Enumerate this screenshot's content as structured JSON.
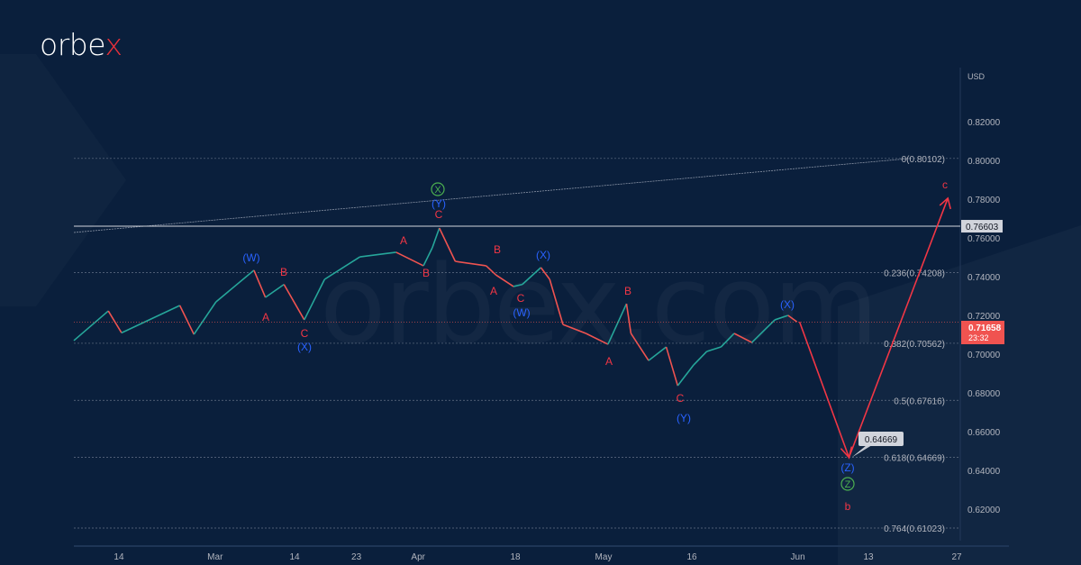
{
  "logo": {
    "text_main": "orbe",
    "text_accent": "x"
  },
  "watermark": "orbex.com",
  "colors": {
    "background": "#0a1f3c",
    "up": "#26a69a",
    "down": "#ef5350",
    "wave_red": "#f23645",
    "wave_blue": "#2962ff",
    "wave_green": "#4caf50",
    "fib": "#8a94a6",
    "grid_text": "#b2b5be"
  },
  "chart_data": {
    "type": "line",
    "title": "",
    "currency_label": "USD",
    "ylim": [
      0.6,
      0.83
    ],
    "y_ticks": [
      0.82,
      0.8,
      0.78,
      0.76,
      0.74,
      0.72,
      0.7,
      0.68,
      0.66,
      0.64,
      0.62
    ],
    "y_tick_labels": [
      "0.82000",
      "0.80000",
      "0.78000",
      "0.76000",
      "0.74000",
      "0.72000",
      "0.70000",
      "0.68000",
      "0.66000",
      "0.64000",
      "0.62000"
    ],
    "x_unit": "trading-day index",
    "xlim": [
      0,
      101
    ],
    "x_ticks": [
      5.1,
      16,
      25,
      32,
      39,
      50,
      60,
      70,
      82,
      90,
      100
    ],
    "x_tick_labels": [
      "14",
      "Mar",
      "14",
      "23",
      "Apr",
      "18",
      "May",
      "16",
      "Jun",
      "13",
      "27"
    ],
    "price_series": {
      "x": [
        0,
        3.9,
        5.4,
        12,
        13.6,
        16.1,
        20.4,
        21.7,
        23.8,
        26.1,
        28.4,
        32.4,
        36.5,
        39.6,
        40.6,
        41.4,
        43.2,
        46.7,
        47.8,
        49.8,
        50.8,
        52.9,
        53.9,
        55.4,
        58,
        60.5,
        62.6,
        63.1,
        65.1,
        67.1,
        68.4,
        70.2,
        71.7,
        73.3,
        74.8,
        76.8,
        79.4,
        80.9,
        81.9
      ],
      "y": [
        0.707,
        0.7223,
        0.711,
        0.7251,
        0.7102,
        0.727,
        0.7433,
        0.7293,
        0.736,
        0.7177,
        0.7386,
        0.7502,
        0.7526,
        0.7456,
        0.7549,
        0.7651,
        0.7479,
        0.7456,
        0.7409,
        0.7349,
        0.736,
        0.7447,
        0.7386,
        0.7153,
        0.7107,
        0.7051,
        0.726,
        0.7107,
        0.6967,
        0.7037,
        0.6837,
        0.6944,
        0.7014,
        0.7037,
        0.7107,
        0.706,
        0.7177,
        0.72,
        0.7167
      ]
    },
    "projection": {
      "x": [
        82.2,
        87.8,
        99
      ],
      "y": [
        0.7167,
        0.64669,
        0.7805
      ]
    },
    "trendline": {
      "x": [
        0,
        94.7
      ],
      "y": [
        0.7628,
        0.801
      ]
    },
    "horizontal_level": {
      "value": 0.76603,
      "label": "0.76603"
    },
    "fib_levels": [
      {
        "value": 0.80102,
        "label": "0(0.80102)"
      },
      {
        "value": 0.74208,
        "label": "0.236(0.74208)"
      },
      {
        "value": 0.70562,
        "label": "0.382(0.70562)"
      },
      {
        "value": 0.67616,
        "label": "0.5(0.67616)"
      },
      {
        "value": 0.64669,
        "label": "0.618(0.64669)"
      },
      {
        "value": 0.61023,
        "label": "0.764(0.61023)"
      }
    ],
    "target_callout": {
      "value": 0.64669,
      "label": "0.64669"
    },
    "last_price": {
      "value": 0.71658,
      "label": "0.71658",
      "countdown": "23:32"
    },
    "wave_labels": [
      {
        "text": "(W)",
        "color": "blue"
      },
      {
        "text": "B",
        "color": "red"
      },
      {
        "text": "A",
        "color": "red"
      },
      {
        "text": "C",
        "color": "red"
      },
      {
        "text": "(X)",
        "color": "blue"
      },
      {
        "text": "A",
        "color": "red"
      },
      {
        "text": "B",
        "color": "red"
      },
      {
        "text": "X",
        "color": "green",
        "circled": true
      },
      {
        "text": "(Y)",
        "color": "blue"
      },
      {
        "text": "C",
        "color": "red"
      },
      {
        "text": "B",
        "color": "red"
      },
      {
        "text": "A",
        "color": "red"
      },
      {
        "text": "C",
        "color": "red"
      },
      {
        "text": "(W)",
        "color": "blue"
      },
      {
        "text": "(X)",
        "color": "blue"
      },
      {
        "text": "B",
        "color": "red"
      },
      {
        "text": "A",
        "color": "red"
      },
      {
        "text": "C",
        "color": "red"
      },
      {
        "text": "(Y)",
        "color": "blue"
      },
      {
        "text": "(X)",
        "color": "blue"
      },
      {
        "text": "(Z)",
        "color": "blue"
      },
      {
        "text": "Z",
        "color": "green",
        "circled": true
      },
      {
        "text": "b",
        "color": "red"
      },
      {
        "text": "c",
        "color": "red"
      }
    ]
  }
}
